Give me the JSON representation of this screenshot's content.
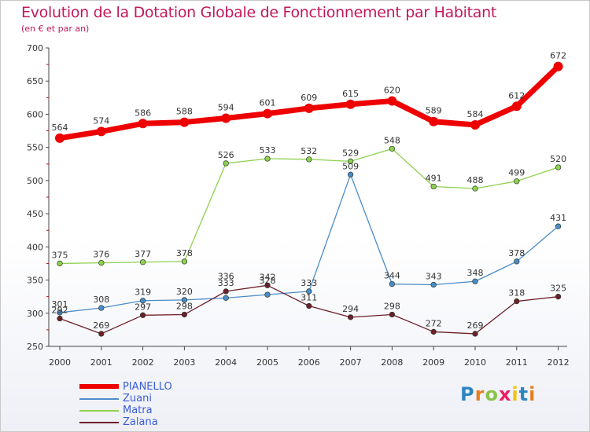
{
  "header": {
    "title": "Evolution de la Dotation Globale de Fonctionnement par Habitant",
    "subtitle": "(en € et par an)"
  },
  "logo": {
    "letters": [
      "P",
      "r",
      "o",
      "x",
      "i",
      "t",
      "i"
    ],
    "colors": [
      "#2e86c1",
      "#e67e22",
      "#8bc34a",
      "#e91e63",
      "#f1c40f",
      "#2e86c1",
      "#e67e22"
    ]
  },
  "colors": {
    "title": "#c2185b",
    "legend_text": "#3b5bdb",
    "axis": "#444444",
    "grid": "#e6e6e6"
  },
  "chart_data": {
    "type": "line",
    "x": [
      "2000",
      "2001",
      "2002",
      "2003",
      "2004",
      "2005",
      "2006",
      "2007",
      "2008",
      "2009",
      "2010",
      "2011",
      "2012"
    ],
    "ylim": [
      250,
      700
    ],
    "yticks": [
      250,
      300,
      350,
      400,
      450,
      500,
      550,
      600,
      650,
      700
    ],
    "grid": false,
    "legend_position": "bottom-left",
    "series": [
      {
        "name": "PIANELLO",
        "color": "#ee0000",
        "width": 7,
        "marker": 6,
        "values": [
          564,
          574,
          586,
          588,
          594,
          601,
          609,
          615,
          620,
          589,
          584,
          612,
          672
        ]
      },
      {
        "name": "Zuani",
        "color": "#4a8cc9",
        "width": 1.3,
        "marker": 3.3,
        "values": [
          301,
          308,
          319,
          320,
          323,
          328,
          333,
          509,
          344,
          343,
          348,
          378,
          431
        ],
        "labels": [
          "301",
          "308",
          "319",
          "320",
          "",
          "",
          "333",
          "509",
          "344",
          "343",
          "348",
          "378",
          "431"
        ]
      },
      {
        "name": "Matra",
        "color": "#8fd14f",
        "width": 1.3,
        "marker": 3.3,
        "values": [
          375,
          376,
          377,
          378,
          526,
          533,
          532,
          529,
          548,
          491,
          488,
          499,
          520
        ]
      },
      {
        "name": "Zalana",
        "color": "#6e1f2a",
        "width": 1.3,
        "marker": 3.3,
        "values": [
          292,
          269,
          297,
          298,
          333,
          342,
          311,
          294,
          298,
          272,
          269,
          318,
          325
        ],
        "labels": [
          "292",
          "269",
          "297",
          "298",
          "333",
          "342",
          "311",
          "294",
          "298",
          "272",
          "269",
          "318",
          "325"
        ]
      }
    ],
    "extra_labels": [
      "336",
      "328"
    ]
  }
}
